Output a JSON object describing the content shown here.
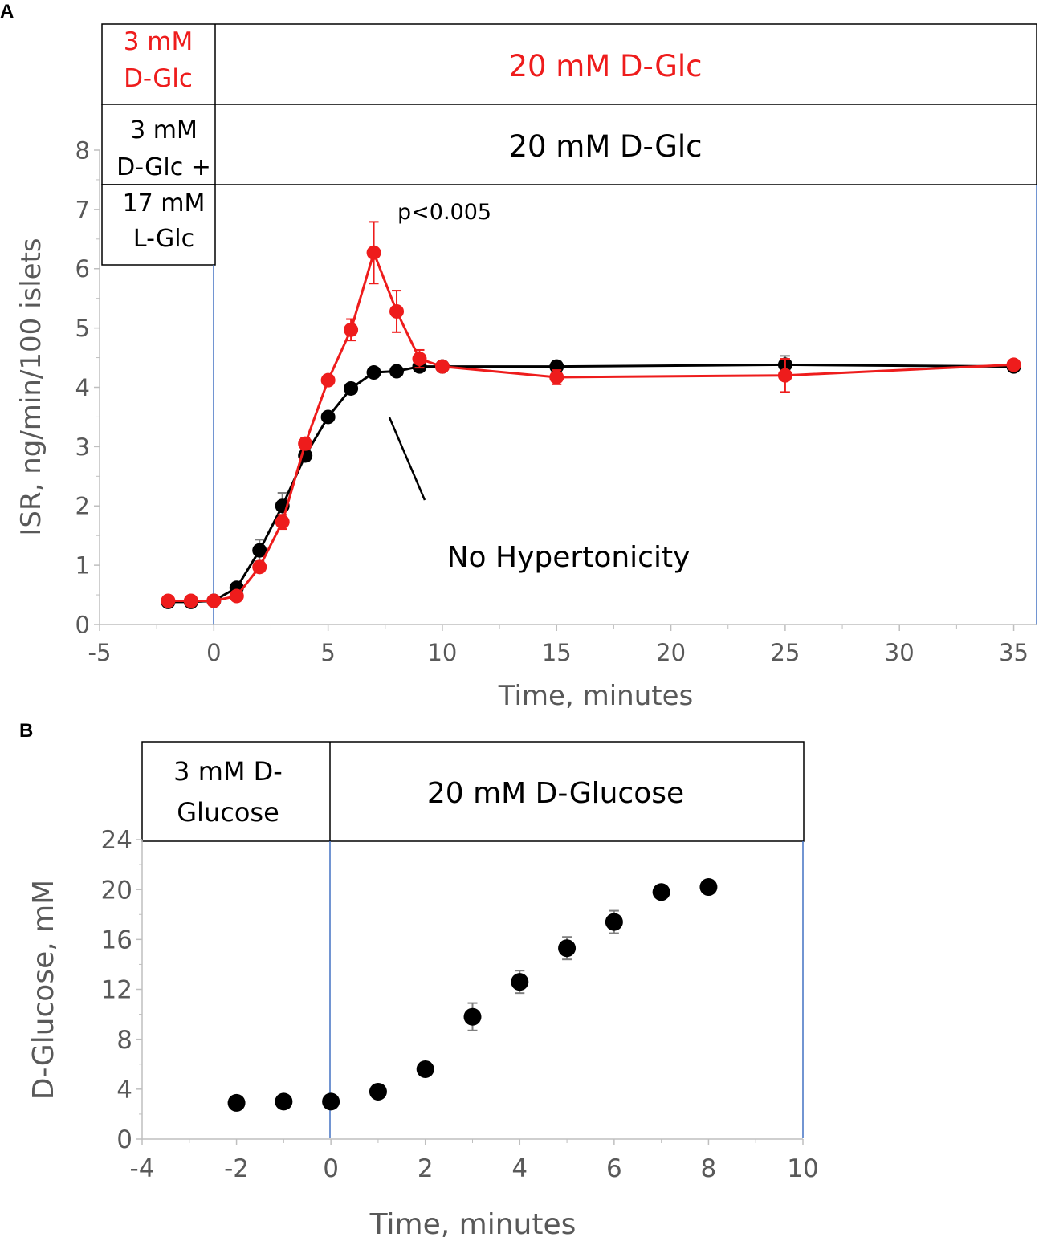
{
  "chart_data": [
    {
      "panel": "A",
      "type": "line",
      "xlabel": "Time, minutes",
      "ylabel": "ISR, ng/min/100 islets",
      "xlim": [
        -5,
        36
      ],
      "ylim": [
        0,
        8
      ],
      "xticks": [
        -5,
        0,
        5,
        10,
        15,
        20,
        25,
        30,
        35
      ],
      "yticks": [
        0,
        1,
        2,
        3,
        4,
        5,
        6,
        7,
        8
      ],
      "grid": false,
      "legend": "none",
      "condition_boxes": {
        "red_row": {
          "pre": [
            "3 mM",
            "D-Glc"
          ],
          "post": "20 mM D-Glc",
          "color": "#ee1c1c"
        },
        "black_row": {
          "pre": [
            "3 mM",
            "D-Glc +",
            "17 mM",
            "L-Glc"
          ],
          "post": "20 mM D-Glc",
          "color": "#000000"
        }
      },
      "annotations": {
        "significance": "p<0.005",
        "arrow_label": "No Hypertonicity"
      },
      "series": [
        {
          "name": "3 mM D-Glc + 17 mM L-Glc → 20 mM D-Glc",
          "color": "#000000",
          "x": [
            -2,
            -1,
            0,
            1,
            2,
            3,
            4,
            5,
            6,
            7,
            8,
            9,
            10,
            15,
            25,
            35
          ],
          "y": [
            0.38,
            0.38,
            0.4,
            0.62,
            1.25,
            2.0,
            2.85,
            3.5,
            3.98,
            4.25,
            4.27,
            4.35,
            4.35,
            4.35,
            4.38,
            4.35
          ],
          "err": [
            0.03,
            0.03,
            0.03,
            0.05,
            0.18,
            0.22,
            0.1,
            0.08,
            0.08,
            0.08,
            0.06,
            0.08,
            0.08,
            0.1,
            0.15,
            0.08
          ]
        },
        {
          "name": "3 mM D-Glc → 20 mM D-Glc",
          "color": "#ee1c1c",
          "x": [
            -2,
            -1,
            0,
            1,
            2,
            3,
            4,
            5,
            6,
            7,
            8,
            9,
            10,
            15,
            25,
            35
          ],
          "y": [
            0.4,
            0.4,
            0.4,
            0.48,
            0.97,
            1.73,
            3.05,
            4.12,
            4.97,
            6.27,
            5.28,
            4.48,
            4.35,
            4.17,
            4.2,
            4.38
          ],
          "err": [
            0.03,
            0.03,
            0.03,
            0.05,
            0.08,
            0.12,
            0.1,
            0.08,
            0.18,
            0.52,
            0.35,
            0.15,
            0.08,
            0.12,
            0.28,
            0.08
          ]
        }
      ]
    },
    {
      "panel": "B",
      "type": "scatter",
      "xlabel": "Time, minutes",
      "ylabel": "D-Glucose, mM",
      "xlim": [
        -4,
        10
      ],
      "ylim": [
        0,
        24
      ],
      "xticks": [
        -4,
        -2,
        0,
        2,
        4,
        6,
        8,
        10
      ],
      "yticks": [
        0,
        4,
        8,
        12,
        16,
        20,
        24
      ],
      "grid": false,
      "legend": "none",
      "condition_boxes": {
        "pre": [
          "3 mM D-",
          "Glucose"
        ],
        "post": "20 mM D-Glucose"
      },
      "series": [
        {
          "name": "D-Glucose",
          "color": "#000000",
          "x": [
            -2,
            -1,
            0,
            1,
            2,
            3,
            4,
            5,
            6,
            7,
            8
          ],
          "y": [
            2.9,
            3.0,
            3.0,
            3.8,
            5.6,
            9.8,
            12.6,
            15.3,
            17.4,
            19.8,
            20.2
          ],
          "err": [
            0.2,
            0.2,
            0.2,
            0.3,
            0.3,
            1.1,
            0.9,
            0.9,
            0.9,
            0.3,
            0.2
          ]
        }
      ]
    }
  ],
  "panel_labels": [
    "A",
    "B"
  ]
}
